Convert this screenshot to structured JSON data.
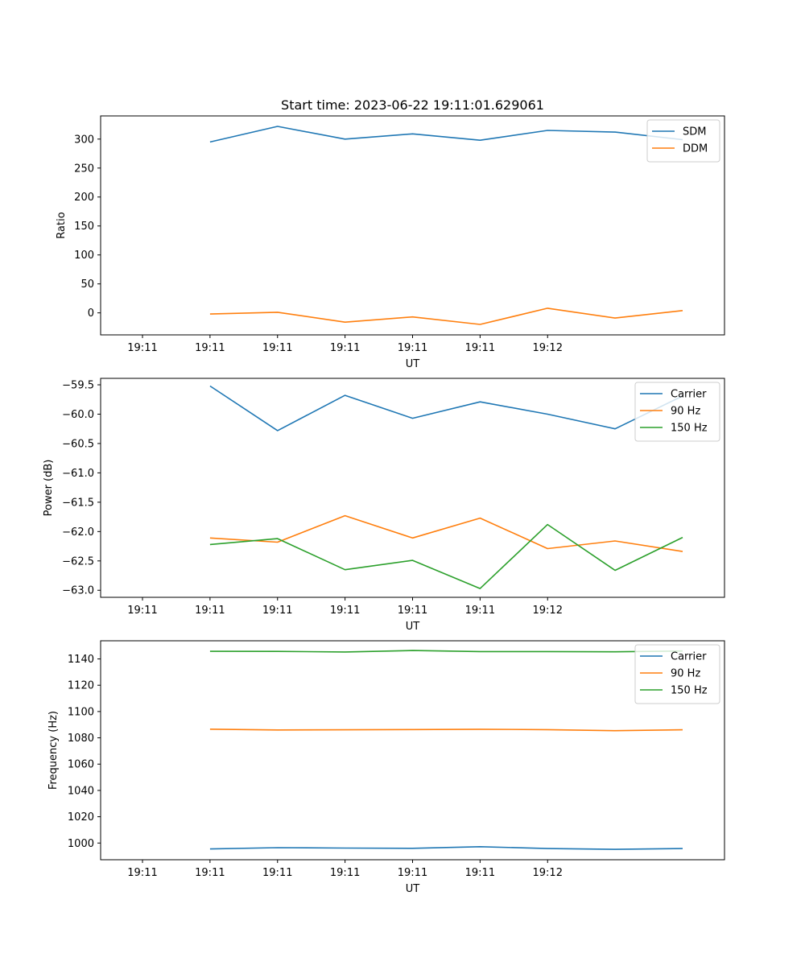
{
  "figure": {
    "title": "Start time: 2023-06-22 19:11:01.629061"
  },
  "chart_data": [
    {
      "type": "line",
      "title": "Start time: 2023-06-22 19:11:01.629061",
      "xlabel": "UT",
      "ylabel": "Ratio",
      "x_tick_labels": [
        "19:11",
        "19:11",
        "19:11",
        "19:11",
        "19:11",
        "19:11",
        "19:12"
      ],
      "y_ticks": [
        0,
        50,
        100,
        150,
        200,
        250,
        300
      ],
      "ylim": [
        -38,
        340
      ],
      "xlim": [
        -0.62,
        8.62
      ],
      "grid": false,
      "legend": "top-right",
      "x": [
        1,
        2,
        3,
        4,
        5,
        6,
        7,
        8
      ],
      "series": [
        {
          "name": "SDM",
          "color": "#1f77b4",
          "values": [
            295,
            322,
            300,
            309,
            298,
            315,
            312,
            299
          ]
        },
        {
          "name": "DDM",
          "color": "#ff7f0e",
          "values": [
            -2,
            1,
            -16,
            -7,
            -20,
            8,
            -9,
            4
          ]
        }
      ]
    },
    {
      "type": "line",
      "title": "",
      "xlabel": "UT",
      "ylabel": "Power (dB)",
      "x_tick_labels": [
        "19:11",
        "19:11",
        "19:11",
        "19:11",
        "19:11",
        "19:11",
        "19:12"
      ],
      "y_ticks": [
        -63.0,
        -62.5,
        -62.0,
        -61.5,
        -61.0,
        -60.5,
        -60.0,
        -59.5
      ],
      "y_tick_labels": [
        "−63.0",
        "−62.5",
        "−62.0",
        "−61.5",
        "−61.0",
        "−60.5",
        "−60.0",
        "−59.5"
      ],
      "ylim": [
        -63.12,
        -59.39
      ],
      "xlim": [
        -0.62,
        8.62
      ],
      "grid": false,
      "legend": "top-right",
      "x": [
        1,
        2,
        3,
        4,
        5,
        6,
        7,
        8
      ],
      "series": [
        {
          "name": "Carrier",
          "color": "#1f77b4",
          "values": [
            -59.52,
            -60.28,
            -59.68,
            -60.07,
            -59.79,
            -60.0,
            -60.25,
            -59.69
          ]
        },
        {
          "name": "90 Hz",
          "color": "#ff7f0e",
          "values": [
            -62.11,
            -62.18,
            -61.73,
            -62.11,
            -61.77,
            -62.29,
            -62.16,
            -62.34
          ]
        },
        {
          "name": "150 Hz",
          "color": "#2ca02c",
          "values": [
            -62.22,
            -62.12,
            -62.65,
            -62.49,
            -62.97,
            -61.88,
            -62.66,
            -62.1
          ]
        }
      ]
    },
    {
      "type": "line",
      "title": "",
      "xlabel": "UT",
      "ylabel": "Frequency (Hz)",
      "x_tick_labels": [
        "19:11",
        "19:11",
        "19:11",
        "19:11",
        "19:11",
        "19:11",
        "19:12"
      ],
      "y_ticks": [
        1000,
        1020,
        1040,
        1060,
        1080,
        1100,
        1120,
        1140
      ],
      "ylim": [
        987.3,
        1153.8
      ],
      "xlim": [
        -0.62,
        8.62
      ],
      "grid": false,
      "legend": "top-right",
      "x": [
        1,
        2,
        3,
        4,
        5,
        6,
        7,
        8
      ],
      "series": [
        {
          "name": "Carrier",
          "color": "#1f77b4",
          "values": [
            995.5,
            996.5,
            996.2,
            996.0,
            997.2,
            995.8,
            995.2,
            995.8
          ]
        },
        {
          "name": "90 Hz",
          "color": "#ff7f0e",
          "values": [
            1086.6,
            1086.0,
            1086.1,
            1086.3,
            1086.5,
            1086.2,
            1085.4,
            1086.1
          ]
        },
        {
          "name": "150 Hz",
          "color": "#2ca02c",
          "values": [
            1145.8,
            1145.7,
            1145.3,
            1146.4,
            1145.6,
            1145.6,
            1145.4,
            1146.0
          ]
        }
      ]
    }
  ]
}
